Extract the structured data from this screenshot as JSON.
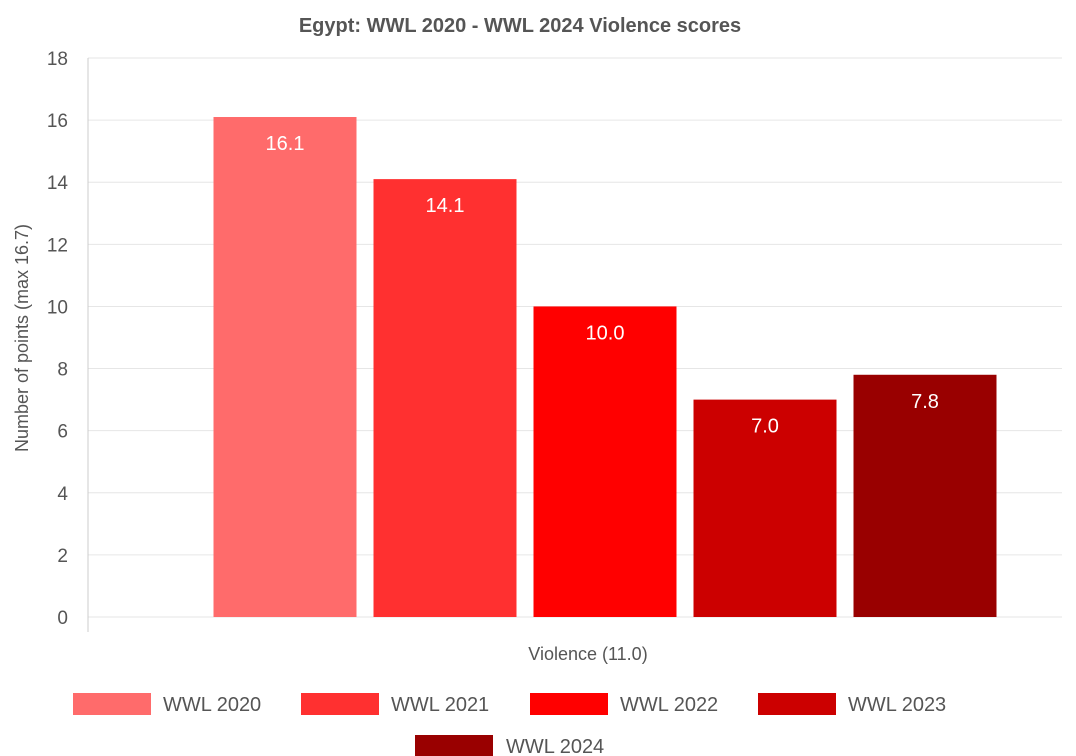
{
  "chart_data": {
    "type": "bar",
    "title": "Egypt: WWL 2020 - WWL 2024 Violence scores",
    "xlabel": "Violence (11.0)",
    "ylabel": "Number of points (max 16.7)",
    "ylim": [
      0,
      18
    ],
    "yticks": [
      "0",
      "2",
      "4",
      "6",
      "8",
      "10",
      "12",
      "14",
      "16",
      "18"
    ],
    "grid": true,
    "legend_position": "bottom",
    "series": [
      {
        "name": "WWL 2020",
        "value": 16.1,
        "label": "16.1",
        "color": "#ff6b6b"
      },
      {
        "name": "WWL 2021",
        "value": 14.1,
        "label": "14.1",
        "color": "#ff3030"
      },
      {
        "name": "WWL 2022",
        "value": 10.0,
        "label": "10.0",
        "color": "#ff0000"
      },
      {
        "name": "WWL 2023",
        "value": 7.0,
        "label": "7.0",
        "color": "#cc0000"
      },
      {
        "name": "WWL 2024",
        "value": 7.8,
        "label": "7.8",
        "color": "#990000"
      }
    ]
  }
}
